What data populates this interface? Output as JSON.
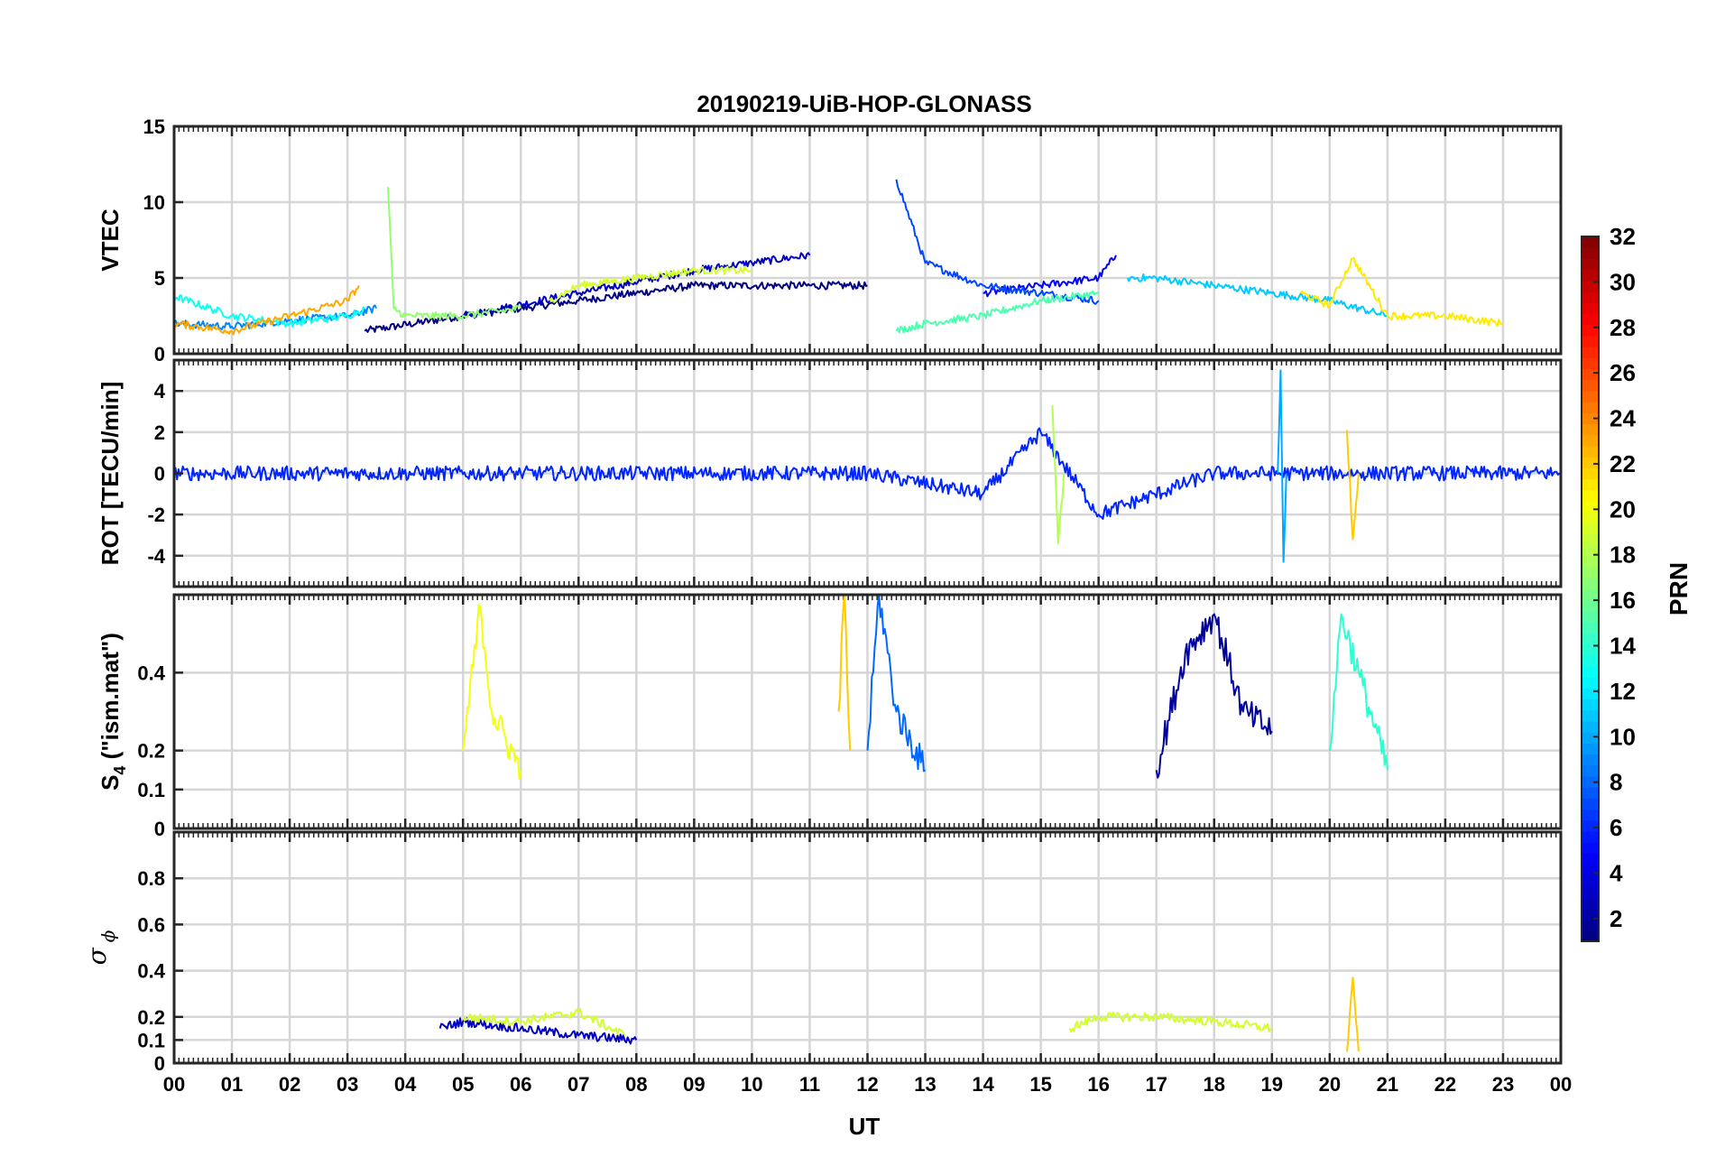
{
  "chart_data": {
    "type": "line",
    "title": "20190219-UiB-HOP-GLONASS",
    "xlabel": "UT",
    "x_tick_labels": [
      "00",
      "01",
      "02",
      "03",
      "04",
      "05",
      "06",
      "07",
      "08",
      "09",
      "10",
      "11",
      "12",
      "13",
      "14",
      "15",
      "16",
      "17",
      "18",
      "19",
      "20",
      "21",
      "22",
      "23",
      "00"
    ],
    "xlim": [
      0,
      24
    ],
    "grid": true,
    "colorbar": {
      "label": "PRN",
      "range": [
        1,
        32
      ],
      "tick_labels": [
        "2",
        "4",
        "6",
        "8",
        "10",
        "12",
        "14",
        "16",
        "18",
        "20",
        "22",
        "24",
        "26",
        "28",
        "30",
        "32"
      ],
      "colormap": "jet",
      "placement": "right"
    },
    "panels": [
      {
        "id": "vtec",
        "ylabel": "VTEC",
        "ylim": [
          0,
          15
        ],
        "y_tick_labels": [
          "0",
          "5",
          "10",
          "15"
        ],
        "y_ticks": [
          0,
          5,
          10,
          15
        ],
        "series": [
          {
            "prn": 1,
            "x": [
              3.3,
              5,
              7,
              9,
              12
            ],
            "y": [
              1.5,
              2.5,
              3.5,
              4.5,
              4.5
            ]
          },
          {
            "prn": 3,
            "x": [
              5,
              7,
              9,
              10,
              11
            ],
            "y": [
              2.5,
              4,
              5.5,
              6,
              6.5
            ]
          },
          {
            "prn": 5,
            "x": [
              14,
              15,
              16,
              16.3
            ],
            "y": [
              4,
              4.5,
              5,
              6.5
            ]
          },
          {
            "prn": 7,
            "x": [
              12.5,
              13,
              14,
              15,
              16
            ],
            "y": [
              11.5,
              6,
              4.5,
              4,
              3.5
            ]
          },
          {
            "prn": 9,
            "x": [
              0,
              1,
              2,
              3,
              3.5
            ],
            "y": [
              2,
              1.8,
              2.2,
              2.5,
              3
            ]
          },
          {
            "prn": 11,
            "x": [
              16.5,
              17,
              18,
              19,
              20,
              21
            ],
            "y": [
              5,
              5,
              4.5,
              4,
              3.5,
              2.5
            ]
          },
          {
            "prn": 13,
            "x": [
              0,
              1,
              2,
              3,
              3.3
            ],
            "y": [
              3.8,
              2.5,
              2,
              2.5,
              3
            ]
          },
          {
            "prn": 15,
            "x": [
              12.5,
              13,
              14,
              15,
              16
            ],
            "y": [
              1.5,
              2,
              2.5,
              3.5,
              4
            ]
          },
          {
            "prn": 17,
            "x": [
              3.7,
              3.8,
              4,
              5,
              6
            ],
            "y": [
              11,
              3,
              2.5,
              2.5,
              3
            ]
          },
          {
            "prn": 19,
            "x": [
              6.5,
              7,
              8,
              9,
              10
            ],
            "y": [
              3.5,
              4.5,
              5,
              5.5,
              5.5
            ]
          },
          {
            "prn": 21,
            "x": [
              19.5,
              20,
              20.4,
              21,
              22,
              23
            ],
            "y": [
              4,
              3.2,
              6.3,
              2.5,
              2.5,
              2
            ]
          },
          {
            "prn": 23,
            "x": [
              0,
              1,
              2,
              3,
              3.2
            ],
            "y": [
              2,
              1.5,
              2.5,
              3.5,
              4.5
            ]
          }
        ]
      },
      {
        "id": "rot",
        "ylabel": "ROT [TECU/min]",
        "ylim": [
          -5.5,
          5.5
        ],
        "y_tick_labels": [
          "-4",
          "-2",
          "0",
          "2",
          "4"
        ],
        "y_ticks": [
          -4,
          -2,
          0,
          2,
          4
        ],
        "series": [
          {
            "prn": 6,
            "x": [
              0,
              6,
              12,
              14,
              15,
              16,
              18,
              24
            ],
            "y": [
              0,
              0,
              0,
              -1,
              2,
              -2,
              0,
              0
            ]
          },
          {
            "prn": 10,
            "x": [
              19.1,
              19.15,
              19.2,
              19.25
            ],
            "y": [
              0,
              5,
              -4.3,
              0
            ]
          },
          {
            "prn": 18,
            "x": [
              15.2,
              15.3,
              15.4
            ],
            "y": [
              3.3,
              -3.4,
              0
            ]
          },
          {
            "prn": 22,
            "x": [
              20.3,
              20.4,
              20.5
            ],
            "y": [
              2.1,
              -3.2,
              0
            ]
          }
        ]
      },
      {
        "id": "s4",
        "ylabel": "S4 (\"ism.mat\")",
        "ylabel_main": "S",
        "ylabel_sub": "4",
        "ylabel_rest": " (\"ism.mat\")",
        "ylim": [
          0,
          0.6
        ],
        "y_tick_labels": [
          "0",
          "0.1",
          "0.2",
          "0.4"
        ],
        "y_ticks": [
          0,
          0.1,
          0.2,
          0.4
        ],
        "series": [
          {
            "prn": 2,
            "x": [
              17,
              17.5,
              18,
              18.5,
              19
            ],
            "y": [
              0.15,
              0.45,
              0.55,
              0.3,
              0.25
            ]
          },
          {
            "prn": 8,
            "x": [
              12,
              12.2,
              12.5,
              13
            ],
            "y": [
              0.2,
              0.6,
              0.3,
              0.15
            ]
          },
          {
            "prn": 14,
            "x": [
              20,
              20.2,
              20.5,
              21
            ],
            "y": [
              0.2,
              0.55,
              0.4,
              0.15
            ]
          },
          {
            "prn": 20,
            "x": [
              5,
              5.3,
              5.5,
              6
            ],
            "y": [
              0.2,
              0.57,
              0.3,
              0.15
            ]
          },
          {
            "prn": 22,
            "x": [
              11.5,
              11.6,
              11.7
            ],
            "y": [
              0.3,
              0.6,
              0.2
            ]
          }
        ]
      },
      {
        "id": "sigma_phi",
        "ylabel": "σ ϕ",
        "ylabel_main": "σ",
        "ylabel_sub": "ϕ",
        "ylim": [
          0,
          1
        ],
        "y_tick_labels": [
          "0",
          "0.1",
          "0.2",
          "0.4",
          "0.6",
          "0.8"
        ],
        "y_ticks": [
          0,
          0.1,
          0.2,
          0.4,
          0.6,
          0.8
        ],
        "series": [
          {
            "prn": 3,
            "x": [
              4.6,
              5,
              6,
              7,
              8
            ],
            "y": [
              0.15,
              0.18,
              0.15,
              0.12,
              0.1
            ]
          },
          {
            "prn": 19,
            "x": [
              5,
              6,
              7,
              7.8
            ],
            "y": [
              0.2,
              0.18,
              0.22,
              0.12
            ]
          },
          {
            "prn": 19,
            "x": [
              15.5,
              16,
              17,
              18,
              19
            ],
            "y": [
              0.15,
              0.2,
              0.2,
              0.18,
              0.15
            ]
          },
          {
            "prn": 22,
            "x": [
              20.3,
              20.4,
              20.5
            ],
            "y": [
              0.05,
              0.37,
              0.05
            ]
          }
        ]
      }
    ]
  }
}
